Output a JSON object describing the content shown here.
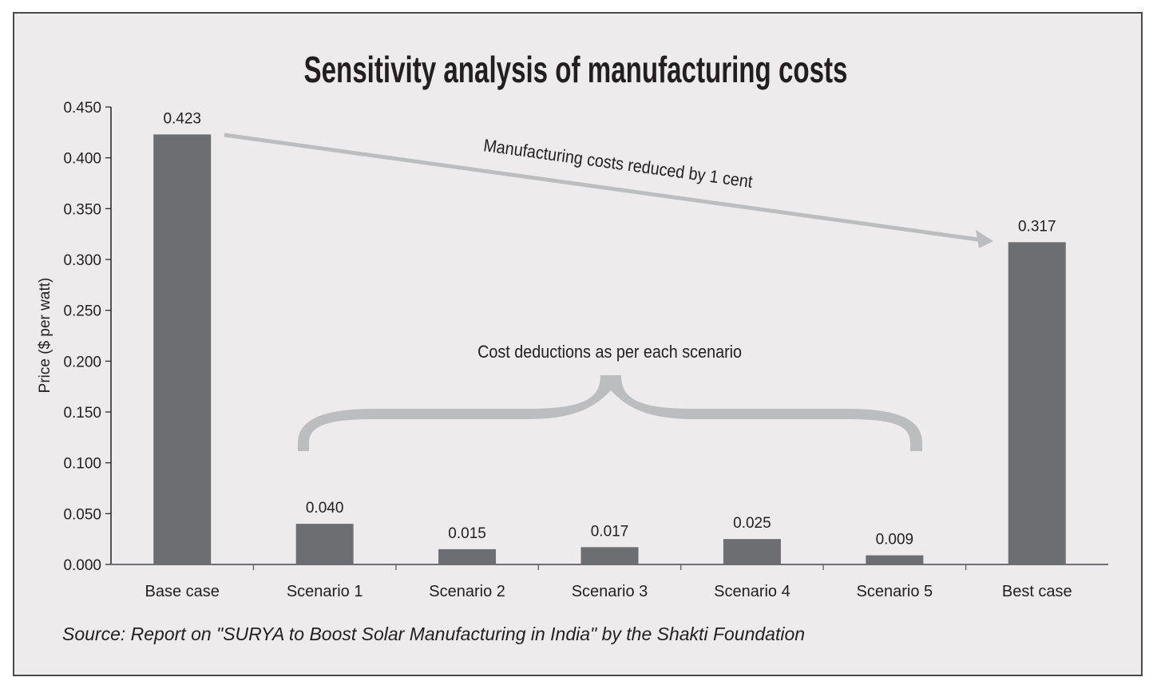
{
  "chart_data": {
    "type": "bar",
    "title": "Sensitivity analysis of manufacturing costs",
    "xlabel": "",
    "ylabel": "Price ($ per watt)",
    "ylim": [
      0,
      0.45
    ],
    "yticks": [
      "0.000",
      "0.050",
      "0.100",
      "0.150",
      "0.200",
      "0.250",
      "0.300",
      "0.350",
      "0.400",
      "0.450"
    ],
    "ytick_values": [
      0,
      0.05,
      0.1,
      0.15,
      0.2,
      0.25,
      0.3,
      0.35,
      0.4,
      0.45
    ],
    "categories": [
      "Base case",
      "Scenario 1",
      "Scenario 2",
      "Scenario 3",
      "Scenario 4",
      "Scenario 5",
      "Best case"
    ],
    "values": [
      0.423,
      0.04,
      0.015,
      0.017,
      0.025,
      0.009,
      0.317
    ],
    "value_labels": [
      "0.423",
      "0.040",
      "0.015",
      "0.017",
      "0.025",
      "0.009",
      "0.317"
    ],
    "grid": false,
    "legend": "none",
    "annotations": {
      "arrow_text": "Manufacturing costs reduced by 1 cent",
      "brace_text": "Cost deductions as per each scenario"
    },
    "source": "Source: Report on \"SURYA to Boost Solar Manufacturing in India\" by the Shakti Foundation"
  },
  "colors": {
    "bar": "#6d6e71",
    "background": "#edebec",
    "annotation": "#bcbdbf",
    "axis": "#6d6e71",
    "text": "#231f20"
  }
}
